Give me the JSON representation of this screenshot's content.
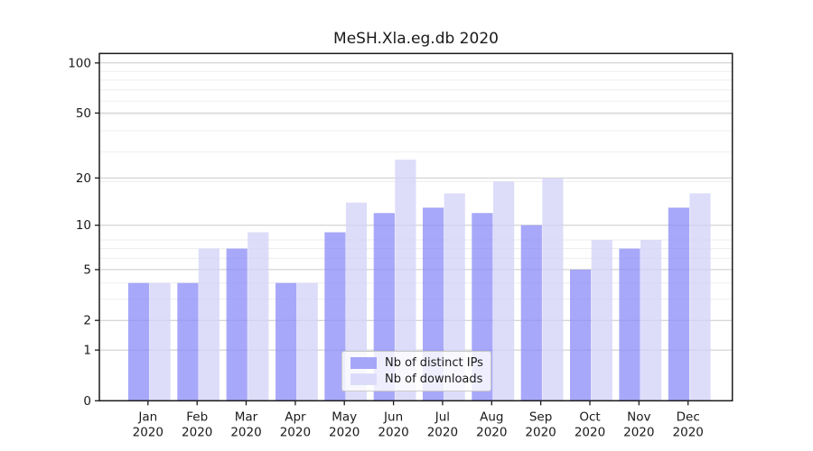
{
  "title": "MeSH.Xla.eg.db 2020",
  "chart_data": {
    "type": "bar",
    "title": "MeSH.Xla.eg.db 2020",
    "xlabel": "",
    "ylabel": "",
    "yscale": "log1p",
    "ylim": [
      0,
      114
    ],
    "y_ticks": [
      0,
      1,
      2,
      5,
      10,
      20,
      50,
      100
    ],
    "y_minor_gridlines": [
      3,
      4,
      6,
      7,
      8,
      19,
      29,
      39,
      49,
      59,
      69,
      79,
      89
    ],
    "grid": true,
    "legend_position": "inside lower-center",
    "categories": [
      "Jan 2020",
      "Feb 2020",
      "Mar 2020",
      "Apr 2020",
      "May 2020",
      "Jun 2020",
      "Jul 2020",
      "Aug 2020",
      "Sep 2020",
      "Oct 2020",
      "Nov 2020",
      "Dec 2020"
    ],
    "series": [
      {
        "name": "Nb of distinct IPs",
        "values": [
          4,
          4,
          7,
          4,
          9,
          12,
          13,
          12,
          10,
          5,
          7,
          13
        ],
        "color": "rgba(143,143,248,0.78)",
        "swatch_color": "#a6a6f9"
      },
      {
        "name": "Nb of downloads",
        "values": [
          4,
          7,
          9,
          4,
          14,
          26,
          16,
          19,
          20,
          8,
          8,
          16
        ],
        "color": "rgba(211,211,249,0.78)",
        "swatch_color": "#dcdcfa"
      }
    ]
  },
  "colors": {
    "background": "#ffffff",
    "axis": "#1a1a1a",
    "text": "#1a1a1a",
    "grid_major": "#c9c9c9",
    "grid_minor": "#ededed"
  }
}
